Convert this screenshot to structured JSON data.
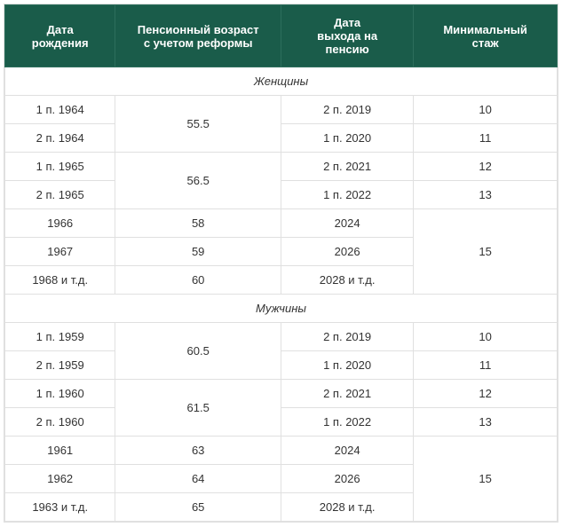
{
  "table": {
    "headers": {
      "birth_date": "Дата\nрождения",
      "pension_age": "Пенсионный возраст\nс учетом реформы",
      "retirement_date": "Дата\nвыхода на\nпенсию",
      "min_experience": "Минимальный\nстаж"
    },
    "sections": {
      "women": "Женщины",
      "men": "Мужчины"
    },
    "women_rows": {
      "r0": {
        "birth": "1 п. 1964",
        "age": "55.5",
        "retire": "2 п. 2019",
        "min": "10"
      },
      "r1": {
        "birth": "2 п. 1964",
        "retire": "1 п. 2020",
        "min": "11"
      },
      "r2": {
        "birth": "1 п. 1965",
        "age": "56.5",
        "retire": "2 п. 2021",
        "min": "12"
      },
      "r3": {
        "birth": "2 п. 1965",
        "retire": "1 п. 2022",
        "min": "13"
      },
      "r4": {
        "birth": "1966",
        "age": "58",
        "retire": "2024",
        "min": "15"
      },
      "r5": {
        "birth": "1967",
        "age": "59",
        "retire": "2026"
      },
      "r6": {
        "birth": "1968 и т.д.",
        "age": "60",
        "retire": "2028 и т.д."
      }
    },
    "men_rows": {
      "r0": {
        "birth": "1 п. 1959",
        "age": "60.5",
        "retire": "2 п. 2019",
        "min": "10"
      },
      "r1": {
        "birth": "2 п. 1959",
        "retire": "1 п. 2020",
        "min": "11"
      },
      "r2": {
        "birth": "1 п. 1960",
        "age": "61.5",
        "retire": "2 п. 2021",
        "min": "12"
      },
      "r3": {
        "birth": "2 п. 1960",
        "retire": "1 п. 2022",
        "min": "13"
      },
      "r4": {
        "birth": "1961",
        "age": "63",
        "retire": "2024",
        "min": "15"
      },
      "r5": {
        "birth": "1962",
        "age": "64",
        "retire": "2026"
      },
      "r6": {
        "birth": "1963 и т.д.",
        "age": "65",
        "retire": "2028 и т.д."
      }
    },
    "styling": {
      "header_bg": "#1a5c4a",
      "header_text": "#ffffff",
      "cell_border": "#e0e0e0",
      "cell_text": "#333333",
      "font_size_header": 13,
      "font_size_cell": 13
    }
  }
}
